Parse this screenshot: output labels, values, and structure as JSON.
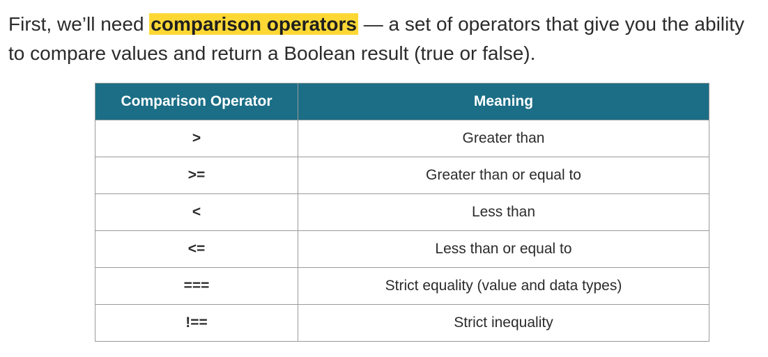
{
  "intro": {
    "before": "First, we’ll need ",
    "highlight": "comparison operators",
    "after": " — a set of operators that give you the ability to compare values and return a Boolean result (true or false)."
  },
  "table": {
    "headers": [
      "Comparison Operator",
      "Meaning"
    ],
    "rows": [
      {
        "operator": ">",
        "meaning": "Greater than"
      },
      {
        "operator": ">=",
        "meaning": "Greater than or equal to"
      },
      {
        "operator": "<",
        "meaning": "Less than"
      },
      {
        "operator": "<=",
        "meaning": "Less than or equal to"
      },
      {
        "operator": "===",
        "meaning": "Strict equality (value and data types)"
      },
      {
        "operator": "!==",
        "meaning": "Strict inequality"
      }
    ]
  },
  "colors": {
    "highlight": "#fdd835",
    "header_bg": "#1b6e86",
    "border": "#9a9a9a"
  }
}
